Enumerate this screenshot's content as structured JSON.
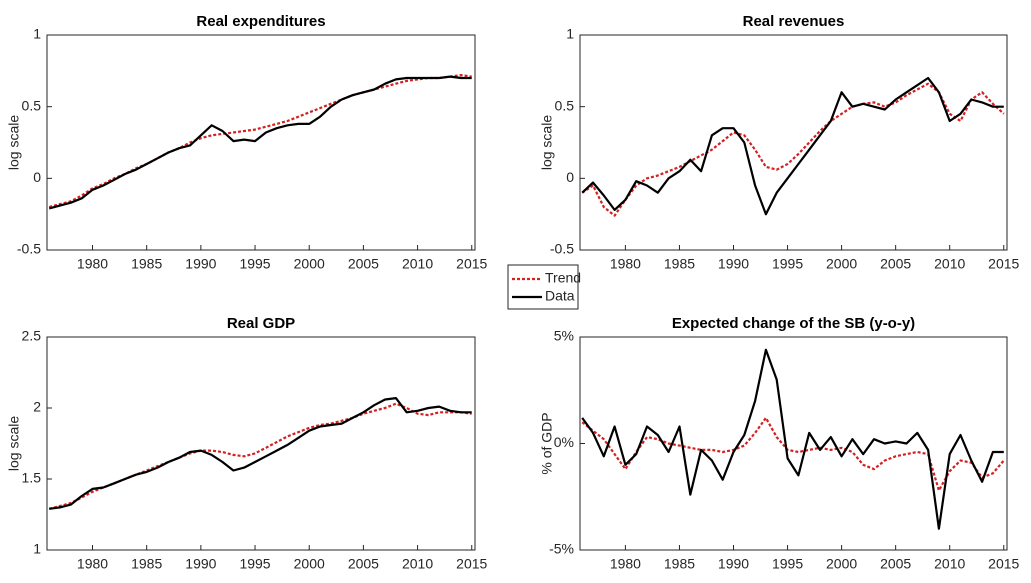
{
  "chart_data": [
    {
      "type": "line",
      "title": "Real expenditures",
      "ylabel": "log scale",
      "x": [
        1976,
        1977,
        1978,
        1979,
        1980,
        1981,
        1982,
        1983,
        1984,
        1985,
        1986,
        1987,
        1988,
        1989,
        1990,
        1991,
        1992,
        1993,
        1994,
        1995,
        1996,
        1997,
        1998,
        1999,
        2000,
        2001,
        2002,
        2003,
        2004,
        2005,
        2006,
        2007,
        2008,
        2009,
        2010,
        2011,
        2012,
        2013,
        2014,
        2015
      ],
      "xlim": [
        1975.8,
        2015.3
      ],
      "xticks": [
        1980,
        1985,
        1990,
        1995,
        2000,
        2005,
        2010,
        2015
      ],
      "ylim": [
        -0.5,
        1
      ],
      "yticks": [
        -0.5,
        0,
        0.5,
        1
      ],
      "series": [
        {
          "name": "Trend",
          "color": "#d42020",
          "values": [
            -0.2,
            -0.18,
            -0.16,
            -0.12,
            -0.07,
            -0.04,
            0.0,
            0.03,
            0.07,
            0.1,
            0.14,
            0.18,
            0.21,
            0.25,
            0.28,
            0.3,
            0.31,
            0.32,
            0.33,
            0.34,
            0.36,
            0.38,
            0.4,
            0.43,
            0.46,
            0.49,
            0.52,
            0.55,
            0.58,
            0.6,
            0.62,
            0.64,
            0.66,
            0.68,
            0.69,
            0.7,
            0.7,
            0.71,
            0.72,
            0.71
          ]
        },
        {
          "name": "Data",
          "color": "#000000",
          "values": [
            -0.21,
            -0.19,
            -0.17,
            -0.14,
            -0.08,
            -0.05,
            -0.01,
            0.03,
            0.06,
            0.1,
            0.14,
            0.18,
            0.21,
            0.23,
            0.3,
            0.37,
            0.33,
            0.26,
            0.27,
            0.26,
            0.32,
            0.35,
            0.37,
            0.38,
            0.38,
            0.43,
            0.5,
            0.55,
            0.58,
            0.6,
            0.62,
            0.66,
            0.69,
            0.7,
            0.7,
            0.7,
            0.7,
            0.71,
            0.7,
            0.7
          ]
        }
      ]
    },
    {
      "type": "line",
      "title": "Real revenues",
      "ylabel": "log scale",
      "x": [
        1976,
        1977,
        1978,
        1979,
        1980,
        1981,
        1982,
        1983,
        1984,
        1985,
        1986,
        1987,
        1988,
        1989,
        1990,
        1991,
        1992,
        1993,
        1994,
        1995,
        1996,
        1997,
        1998,
        1999,
        2000,
        2001,
        2002,
        2003,
        2004,
        2005,
        2006,
        2007,
        2008,
        2009,
        2010,
        2011,
        2012,
        2013,
        2014,
        2015
      ],
      "xlim": [
        1975.8,
        2015.3
      ],
      "xticks": [
        1980,
        1985,
        1990,
        1995,
        2000,
        2005,
        2010,
        2015
      ],
      "ylim": [
        -0.5,
        1
      ],
      "yticks": [
        -0.5,
        0,
        0.5,
        1
      ],
      "series": [
        {
          "name": "Trend",
          "color": "#d42020",
          "values": [
            -0.1,
            -0.05,
            -0.2,
            -0.26,
            -0.15,
            -0.05,
            0.0,
            0.02,
            0.05,
            0.08,
            0.12,
            0.16,
            0.2,
            0.26,
            0.32,
            0.3,
            0.2,
            0.08,
            0.06,
            0.1,
            0.17,
            0.25,
            0.33,
            0.4,
            0.45,
            0.5,
            0.52,
            0.53,
            0.5,
            0.53,
            0.58,
            0.62,
            0.66,
            0.6,
            0.45,
            0.4,
            0.55,
            0.6,
            0.52,
            0.45
          ]
        },
        {
          "name": "Data",
          "color": "#000000",
          "values": [
            -0.1,
            -0.03,
            -0.12,
            -0.22,
            -0.15,
            -0.02,
            -0.05,
            -0.1,
            0.0,
            0.05,
            0.13,
            0.05,
            0.3,
            0.35,
            0.35,
            0.25,
            -0.05,
            -0.25,
            -0.1,
            0.0,
            0.1,
            0.2,
            0.3,
            0.4,
            0.6,
            0.5,
            0.52,
            0.5,
            0.48,
            0.55,
            0.6,
            0.65,
            0.7,
            0.6,
            0.4,
            0.45,
            0.55,
            0.53,
            0.5,
            0.5
          ]
        }
      ]
    },
    {
      "type": "line",
      "title": "Real GDP",
      "ylabel": "log scale",
      "x": [
        1976,
        1977,
        1978,
        1979,
        1980,
        1981,
        1982,
        1983,
        1984,
        1985,
        1986,
        1987,
        1988,
        1989,
        1990,
        1991,
        1992,
        1993,
        1994,
        1995,
        1996,
        1997,
        1998,
        1999,
        2000,
        2001,
        2002,
        2003,
        2004,
        2005,
        2006,
        2007,
        2008,
        2009,
        2010,
        2011,
        2012,
        2013,
        2014,
        2015
      ],
      "xlim": [
        1975.8,
        2015.3
      ],
      "xticks": [
        1980,
        1985,
        1990,
        1995,
        2000,
        2005,
        2010,
        2015
      ],
      "ylim": [
        1,
        2.5
      ],
      "yticks": [
        1,
        1.5,
        2,
        2.5
      ],
      "series": [
        {
          "name": "Trend",
          "color": "#d42020",
          "values": [
            1.29,
            1.31,
            1.33,
            1.37,
            1.41,
            1.44,
            1.47,
            1.5,
            1.53,
            1.56,
            1.59,
            1.62,
            1.65,
            1.68,
            1.7,
            1.7,
            1.69,
            1.67,
            1.66,
            1.68,
            1.72,
            1.76,
            1.8,
            1.83,
            1.86,
            1.88,
            1.89,
            1.91,
            1.93,
            1.96,
            1.98,
            2.0,
            2.03,
            2.0,
            1.96,
            1.95,
            1.97,
            1.97,
            1.97,
            1.96
          ]
        },
        {
          "name": "Data",
          "color": "#000000",
          "values": [
            1.29,
            1.3,
            1.32,
            1.38,
            1.43,
            1.44,
            1.47,
            1.5,
            1.53,
            1.55,
            1.58,
            1.62,
            1.65,
            1.69,
            1.7,
            1.67,
            1.62,
            1.56,
            1.58,
            1.62,
            1.66,
            1.7,
            1.74,
            1.79,
            1.84,
            1.87,
            1.88,
            1.89,
            1.93,
            1.97,
            2.02,
            2.06,
            2.07,
            1.97,
            1.98,
            2.0,
            2.01,
            1.98,
            1.97,
            1.97
          ]
        }
      ]
    },
    {
      "type": "line",
      "title": "Expected change of the SB (y-o-y)",
      "ylabel": "% of GDP",
      "x": [
        1976,
        1977,
        1978,
        1979,
        1980,
        1981,
        1982,
        1983,
        1984,
        1985,
        1986,
        1987,
        1988,
        1989,
        1990,
        1991,
        1992,
        1993,
        1994,
        1995,
        1996,
        1997,
        1998,
        1999,
        2000,
        2001,
        2002,
        2003,
        2004,
        2005,
        2006,
        2007,
        2008,
        2009,
        2010,
        2011,
        2012,
        2013,
        2014,
        2015
      ],
      "xlim": [
        1975.8,
        2015.3
      ],
      "xticks": [
        1980,
        1985,
        1990,
        1995,
        2000,
        2005,
        2010,
        2015
      ],
      "ylim": [
        -5,
        5
      ],
      "yticks": [
        {
          "value": -5,
          "label": "-5%"
        },
        {
          "value": 0,
          "label": "0%"
        },
        {
          "value": 5,
          "label": "5%"
        }
      ],
      "series": [
        {
          "name": "Trend",
          "color": "#d42020",
          "values": [
            1.0,
            0.6,
            0.2,
            -0.5,
            -1.2,
            -0.4,
            0.3,
            0.2,
            0.0,
            -0.1,
            -0.2,
            -0.3,
            -0.3,
            -0.4,
            -0.3,
            -0.1,
            0.5,
            1.2,
            0.3,
            -0.3,
            -0.4,
            -0.3,
            -0.2,
            -0.3,
            -0.2,
            -0.4,
            -1.0,
            -1.2,
            -0.8,
            -0.6,
            -0.5,
            -0.4,
            -0.5,
            -2.2,
            -1.3,
            -0.8,
            -0.9,
            -1.6,
            -1.4,
            -0.8
          ]
        },
        {
          "name": "Data",
          "color": "#000000",
          "values": [
            1.2,
            0.5,
            -0.6,
            0.8,
            -1.0,
            -0.5,
            0.8,
            0.4,
            -0.4,
            0.8,
            -2.4,
            -0.3,
            -0.8,
            -1.7,
            -0.4,
            0.4,
            2.0,
            4.4,
            3.0,
            -0.7,
            -1.5,
            0.5,
            -0.3,
            0.3,
            -0.6,
            0.2,
            -0.5,
            0.2,
            0.0,
            0.1,
            0.0,
            0.5,
            -0.3,
            -4.0,
            -0.5,
            0.4,
            -0.8,
            -1.8,
            -0.4,
            -0.4
          ]
        }
      ]
    }
  ]
}
